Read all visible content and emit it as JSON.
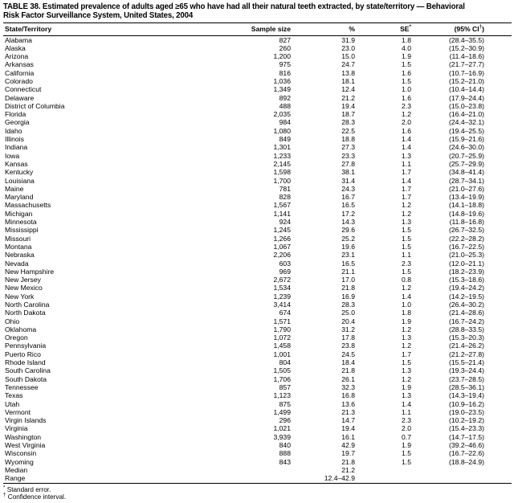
{
  "colors": {
    "text": "#000000",
    "background": "#ffffff",
    "rule": "#000000"
  },
  "title_lines": [
    "TABLE 38. Estimated prevalence of adults aged ≥65 who have had all their natural teeth extracted, by state/territory — Behavioral",
    "Risk Factor Surveillance System, United States, 2004"
  ],
  "columns": {
    "state": "State/Territory",
    "sample_size": "Sample size",
    "percent": "%",
    "se": {
      "base": "SE",
      "sup": "*"
    },
    "ci": {
      "pre": "(95% CI",
      "sup": "†",
      "post": ")"
    }
  },
  "rows": [
    {
      "state": "Alabama",
      "n": "827",
      "pct": "31.9",
      "se": "1.8",
      "ci": "(28.4–35.5)"
    },
    {
      "state": "Alaska",
      "n": "260",
      "pct": "23.0",
      "se": "4.0",
      "ci": "(15.2–30.9)"
    },
    {
      "state": "Arizona",
      "n": "1,200",
      "pct": "15.0",
      "se": "1.9",
      "ci": "(11.4–18.6)"
    },
    {
      "state": "Arkansas",
      "n": "975",
      "pct": "24.7",
      "se": "1.5",
      "ci": "(21.7–27.7)"
    },
    {
      "state": "California",
      "n": "816",
      "pct": "13.8",
      "se": "1.6",
      "ci": "(10.7–16.9)"
    },
    {
      "state": "Colorado",
      "n": "1,036",
      "pct": "18.1",
      "se": "1.5",
      "ci": "(15.2–21.0)"
    },
    {
      "state": "Connecticut",
      "n": "1,349",
      "pct": "12.4",
      "se": "1.0",
      "ci": "(10.4–14.4)"
    },
    {
      "state": "Delaware",
      "n": "892",
      "pct": "21.2",
      "se": "1.6",
      "ci": "(17.9–24.4)"
    },
    {
      "state": "District of Columbia",
      "n": "488",
      "pct": "19.4",
      "se": "2.3",
      "ci": "(15.0–23.8)"
    },
    {
      "state": "Florida",
      "n": "2,035",
      "pct": "18.7",
      "se": "1.2",
      "ci": "(16.4–21.0)"
    },
    {
      "state": "Georgia",
      "n": "984",
      "pct": "28.3",
      "se": "2.0",
      "ci": "(24.4–32.1)"
    },
    {
      "state": "Idaho",
      "n": "1,080",
      "pct": "22.5",
      "se": "1.6",
      "ci": "(19.4–25.5)"
    },
    {
      "state": "Illinois",
      "n": "849",
      "pct": "18.8",
      "se": "1.4",
      "ci": "(15.9–21.6)"
    },
    {
      "state": "Indiana",
      "n": "1,301",
      "pct": "27.3",
      "se": "1.4",
      "ci": "(24.6–30.0)"
    },
    {
      "state": "Iowa",
      "n": "1,233",
      "pct": "23.3",
      "se": "1.3",
      "ci": "(20.7–25.9)"
    },
    {
      "state": "Kansas",
      "n": "2,145",
      "pct": "27.8",
      "se": "1.1",
      "ci": "(25.7–29.9)"
    },
    {
      "state": "Kentucky",
      "n": "1,598",
      "pct": "38.1",
      "se": "1.7",
      "ci": "(34.8–41.4)"
    },
    {
      "state": "Louisiana",
      "n": "1,700",
      "pct": "31.4",
      "se": "1.4",
      "ci": "(28.7–34.1)"
    },
    {
      "state": "Maine",
      "n": "781",
      "pct": "24.3",
      "se": "1.7",
      "ci": "(21.0–27.6)"
    },
    {
      "state": "Maryland",
      "n": "828",
      "pct": "16.7",
      "se": "1.7",
      "ci": "(13.4–19.9)"
    },
    {
      "state": "Massachusetts",
      "n": "1,567",
      "pct": "16.5",
      "se": "1.2",
      "ci": "(14.1–18.8)"
    },
    {
      "state": "Michigan",
      "n": "1,141",
      "pct": "17.2",
      "se": "1.2",
      "ci": "(14.8–19.6)"
    },
    {
      "state": "Minnesota",
      "n": "924",
      "pct": "14.3",
      "se": "1.3",
      "ci": "(11.8–16.8)"
    },
    {
      "state": "Mississippi",
      "n": "1,245",
      "pct": "29.6",
      "se": "1.5",
      "ci": "(26.7–32.5)"
    },
    {
      "state": "Missouri",
      "n": "1,266",
      "pct": "25.2",
      "se": "1.5",
      "ci": "(22.2–28.2)"
    },
    {
      "state": "Montana",
      "n": "1,067",
      "pct": "19.6",
      "se": "1.5",
      "ci": "(16.7–22.5)"
    },
    {
      "state": "Nebraska",
      "n": "2,206",
      "pct": "23.1",
      "se": "1.1",
      "ci": "(21.0–25.3)"
    },
    {
      "state": "Nevada",
      "n": "603",
      "pct": "16.5",
      "se": "2.3",
      "ci": "(12.0–21.1)"
    },
    {
      "state": "New Hampshire",
      "n": "969",
      "pct": "21.1",
      "se": "1.5",
      "ci": "(18.2–23.9)"
    },
    {
      "state": "New Jersey",
      "n": "2,672",
      "pct": "17.0",
      "se": "0.8",
      "ci": "(15.3–18.6)"
    },
    {
      "state": "New Mexico",
      "n": "1,534",
      "pct": "21.8",
      "se": "1.2",
      "ci": "(19.4–24.2)"
    },
    {
      "state": "New York",
      "n": "1,239",
      "pct": "16.9",
      "se": "1.4",
      "ci": "(14.2–19.5)"
    },
    {
      "state": "North Carolina",
      "n": "3,414",
      "pct": "28.3",
      "se": "1.0",
      "ci": "(26.4–30.2)"
    },
    {
      "state": "North Dakota",
      "n": "674",
      "pct": "25.0",
      "se": "1.8",
      "ci": "(21.4–28.6)"
    },
    {
      "state": "Ohio",
      "n": "1,571",
      "pct": "20.4",
      "se": "1.9",
      "ci": "(16.7–24.2)"
    },
    {
      "state": "Oklahoma",
      "n": "1,790",
      "pct": "31.2",
      "se": "1.2",
      "ci": "(28.8–33.5)"
    },
    {
      "state": "Oregon",
      "n": "1,072",
      "pct": "17.8",
      "se": "1.3",
      "ci": "(15.3–20.3)"
    },
    {
      "state": "Pennsylvania",
      "n": "1,458",
      "pct": "23.8",
      "se": "1.2",
      "ci": "(21.4–26.2)"
    },
    {
      "state": "Puerto Rico",
      "n": "1,001",
      "pct": "24.5",
      "se": "1.7",
      "ci": "(21.2–27.8)"
    },
    {
      "state": "Rhode Island",
      "n": "804",
      "pct": "18.4",
      "se": "1.5",
      "ci": "(15.5–21.4)"
    },
    {
      "state": "South Carolina",
      "n": "1,505",
      "pct": "21.8",
      "se": "1.3",
      "ci": "(19.3–24.4)"
    },
    {
      "state": "South Dakota",
      "n": "1,706",
      "pct": "26.1",
      "se": "1.2",
      "ci": "(23.7–28.5)"
    },
    {
      "state": "Tennessee",
      "n": "857",
      "pct": "32.3",
      "se": "1.9",
      "ci": "(28.5–36.1)"
    },
    {
      "state": "Texas",
      "n": "1,123",
      "pct": "16.8",
      "se": "1.3",
      "ci": "(14.3–19.4)"
    },
    {
      "state": "Utah",
      "n": "875",
      "pct": "13.6",
      "se": "1.4",
      "ci": "(10.9–16.2)"
    },
    {
      "state": "Vermont",
      "n": "1,499",
      "pct": "21.3",
      "se": "1.1",
      "ci": "(19.0–23.5)"
    },
    {
      "state": "Virgin Islands",
      "n": "296",
      "pct": "14.7",
      "se": "2.3",
      "ci": "(10.2–19.2)"
    },
    {
      "state": "Virginia",
      "n": "1,021",
      "pct": "19.4",
      "se": "2.0",
      "ci": "(15.4–23.3)"
    },
    {
      "state": "Washington",
      "n": "3,939",
      "pct": "16.1",
      "se": "0.7",
      "ci": "(14.7–17.5)"
    },
    {
      "state": "West Virginia",
      "n": "840",
      "pct": "42.9",
      "se": "1.9",
      "ci": "(39.2–46.6)"
    },
    {
      "state": "Wisconsin",
      "n": "888",
      "pct": "19.7",
      "se": "1.5",
      "ci": "(16.7–22.6)"
    },
    {
      "state": "Wyoming",
      "n": "843",
      "pct": "21.8",
      "se": "1.5",
      "ci": "(18.8–24.9)"
    },
    {
      "state": "Median",
      "n": "",
      "pct": "21.2",
      "se": "",
      "ci": ""
    },
    {
      "state": "Range",
      "n": "",
      "pct": "12.4–42.9",
      "se": "",
      "ci": ""
    }
  ],
  "footnotes": [
    {
      "marker": "*",
      "text": " Standard error."
    },
    {
      "marker": "†",
      "text": " Confidence interval."
    }
  ]
}
